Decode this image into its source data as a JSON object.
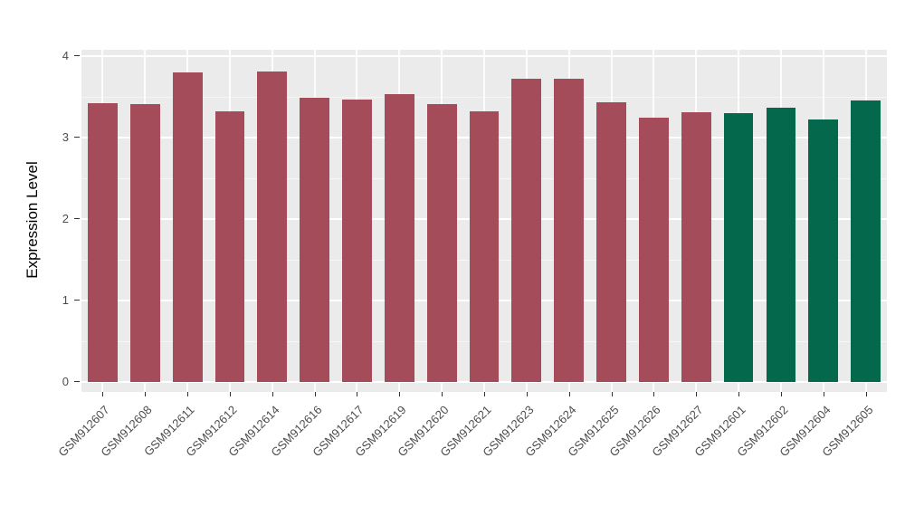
{
  "chart_data": {
    "type": "bar",
    "title": "",
    "xlabel": "",
    "ylabel": "Expression Level",
    "ylim": [
      0,
      4
    ],
    "yticks": [
      0,
      1,
      2,
      3,
      4
    ],
    "grid": "white major and minor horizontal lines plus faint vertical category lines on gray panel",
    "legend": "none",
    "categories": [
      "GSM912607",
      "GSM912608",
      "GSM912611",
      "GSM912612",
      "GSM912614",
      "GSM912616",
      "GSM912617",
      "GSM912619",
      "GSM912620",
      "GSM912621",
      "GSM912623",
      "GSM912624",
      "GSM912625",
      "GSM912626",
      "GSM912627",
      "GSM912601",
      "GSM912602",
      "GSM912604",
      "GSM912605"
    ],
    "values": [
      3.42,
      3.41,
      3.8,
      3.32,
      3.81,
      3.49,
      3.47,
      3.53,
      3.41,
      3.32,
      3.72,
      3.72,
      3.43,
      3.25,
      3.31,
      3.3,
      3.37,
      3.22,
      3.46
    ],
    "groups": [
      "A",
      "A",
      "A",
      "A",
      "A",
      "A",
      "A",
      "A",
      "A",
      "A",
      "A",
      "A",
      "A",
      "A",
      "A",
      "B",
      "B",
      "B",
      "B"
    ],
    "group_colors": {
      "A": "#A44C5A",
      "B": "#04694C"
    },
    "panel_color": "#EBEBEB",
    "tick_text_color": "#4D4D4D"
  }
}
